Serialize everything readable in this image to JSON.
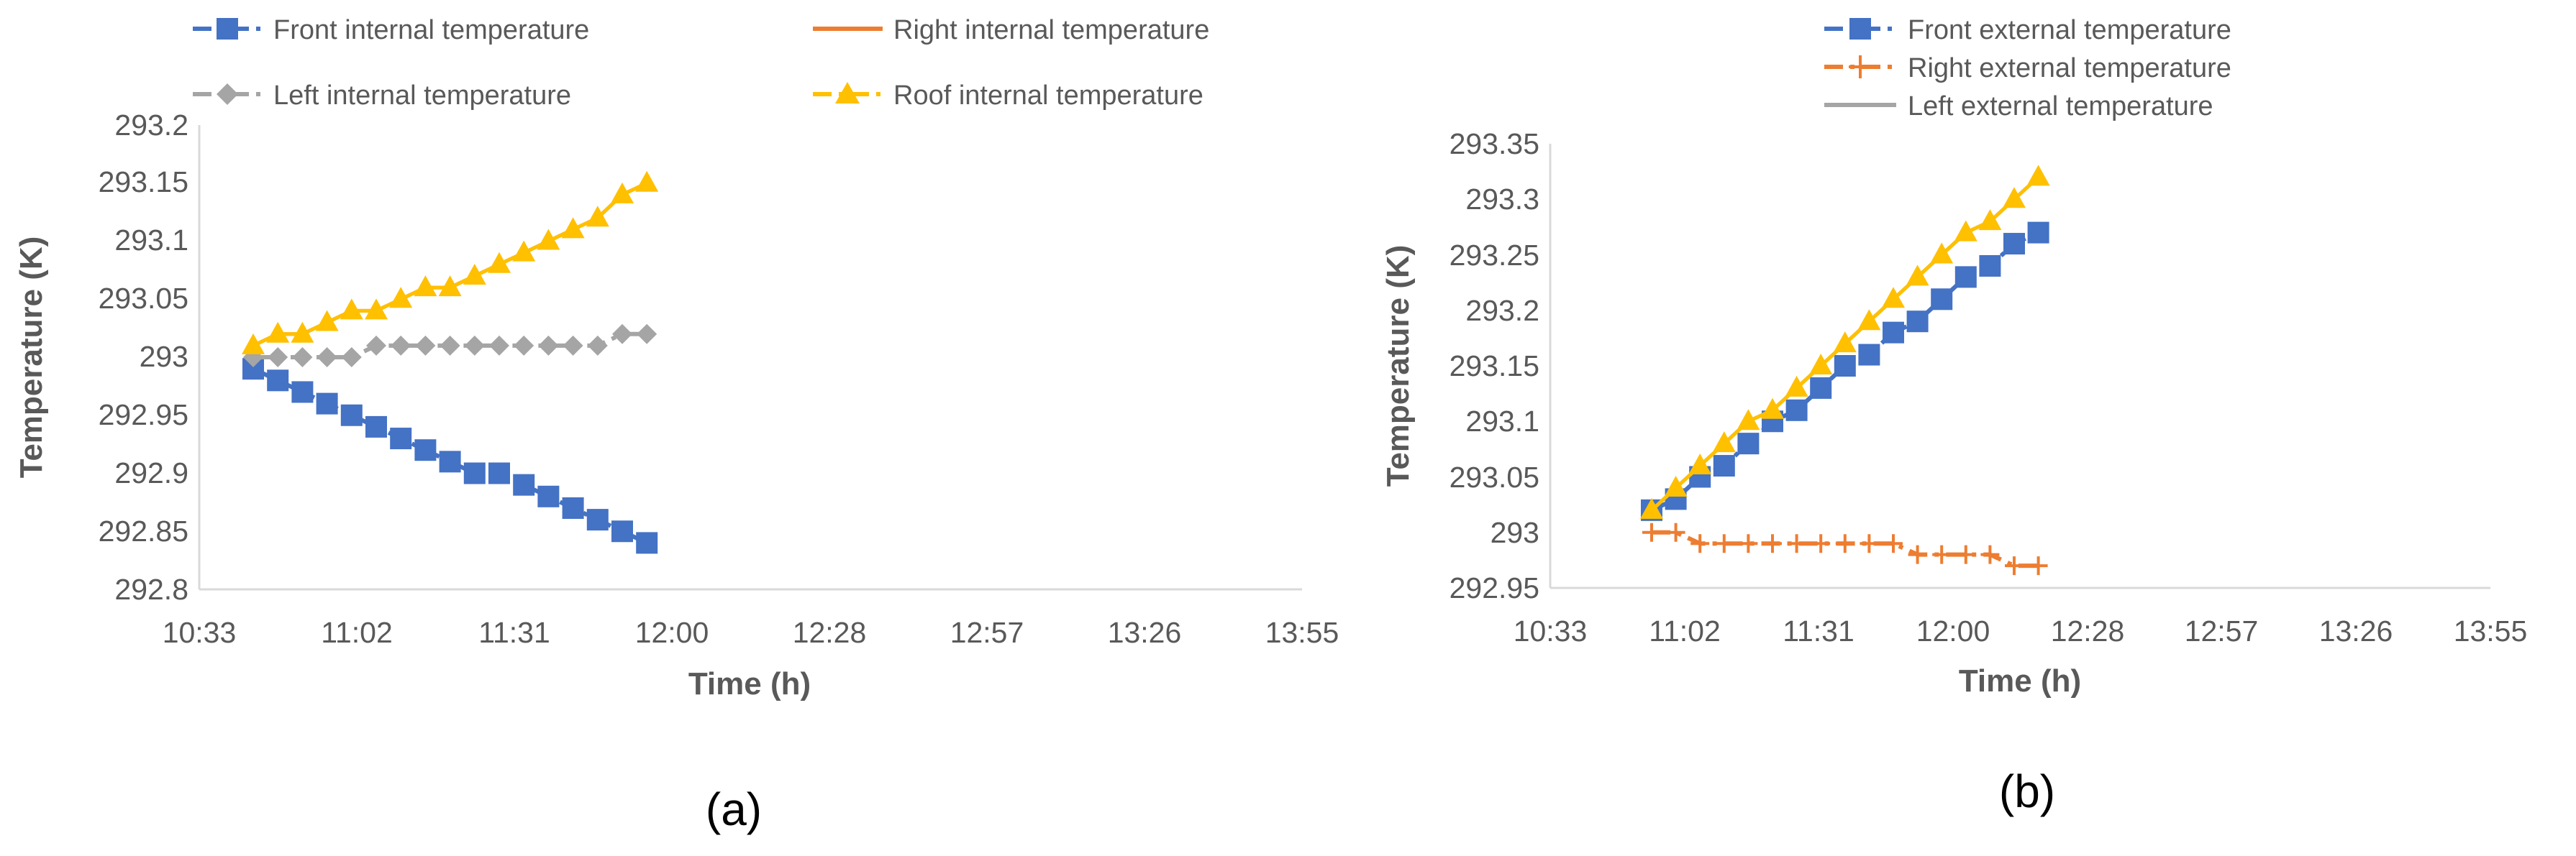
{
  "chart_data": [
    {
      "id": "a",
      "type": "line",
      "panel_label": "(a)",
      "xlabel": "Time (h)",
      "ylabel": "Temperature (K)",
      "x_ticks": [
        "10:33",
        "11:02",
        "11:31",
        "12:00",
        "12:28",
        "12:57",
        "13:26",
        "13:55"
      ],
      "ylim": [
        292.8,
        293.2
      ],
      "y_ticks": [
        "292.8",
        "292.85",
        "292.9",
        "292.95",
        "293",
        "293.05",
        "293.1",
        "293.15",
        "293.2"
      ],
      "series": [
        {
          "name": "Front internal temperature",
          "color": "#4472C4",
          "marker": "square",
          "line": "dashdot",
          "values": [
            292.99,
            292.98,
            292.97,
            292.96,
            292.95,
            292.94,
            292.93,
            292.92,
            292.91,
            292.9,
            292.9,
            292.89,
            292.88,
            292.87,
            292.86,
            292.85,
            292.84
          ]
        },
        {
          "name": "Right internal temperature",
          "color": "#ED7D31",
          "marker": "none",
          "line": "solid",
          "values": [
            293.01,
            293.02,
            293.02,
            293.03,
            293.04,
            293.04,
            293.05,
            293.06,
            293.06,
            293.07,
            293.08,
            293.09,
            293.1,
            293.11,
            293.12,
            293.14,
            293.15
          ]
        },
        {
          "name": "Left internal temperature",
          "color": "#A5A5A5",
          "marker": "diamond",
          "line": "dashdot",
          "values": [
            293.0,
            293.0,
            293.0,
            293.0,
            293.0,
            293.01,
            293.01,
            293.01,
            293.01,
            293.01,
            293.01,
            293.01,
            293.01,
            293.01,
            293.01,
            293.02,
            293.02
          ]
        },
        {
          "name": "Roof internal temperature",
          "color": "#FFC000",
          "marker": "triangle",
          "line": "solid",
          "values": [
            293.01,
            293.02,
            293.02,
            293.03,
            293.04,
            293.04,
            293.05,
            293.06,
            293.06,
            293.07,
            293.08,
            293.09,
            293.1,
            293.11,
            293.12,
            293.14,
            293.15
          ]
        }
      ]
    },
    {
      "id": "b",
      "type": "line",
      "panel_label": "(b)",
      "xlabel": "Time (h)",
      "ylabel": "Temperature (K)",
      "x_ticks": [
        "10:33",
        "11:02",
        "11:31",
        "12:00",
        "12:28",
        "12:57",
        "13:26",
        "13:55"
      ],
      "ylim": [
        292.95,
        293.35
      ],
      "y_ticks": [
        "292.95",
        "293",
        "293.05",
        "293.1",
        "293.15",
        "293.2",
        "293.25",
        "293.3",
        "293.35"
      ],
      "series": [
        {
          "name": "Front external temperature",
          "color": "#4472C4",
          "marker": "square",
          "line": "dashdot",
          "values": [
            293.02,
            293.03,
            293.05,
            293.06,
            293.08,
            293.1,
            293.11,
            293.13,
            293.15,
            293.16,
            293.18,
            293.19,
            293.21,
            293.23,
            293.24,
            293.26,
            293.27
          ]
        },
        {
          "name": "Right external temperature",
          "color": "#ED7D31",
          "marker": "plus",
          "line": "dashdot",
          "values": [
            293.0,
            293.0,
            292.99,
            292.99,
            292.99,
            292.99,
            292.99,
            292.99,
            292.99,
            292.99,
            292.99,
            292.98,
            292.98,
            292.98,
            292.98,
            292.97,
            292.97
          ]
        },
        {
          "name": "Left external temperature",
          "color": "#A5A5A5",
          "marker": "none",
          "line": "solid",
          "values": [
            293.02,
            293.04,
            293.06,
            293.08,
            293.1,
            293.11,
            293.13,
            293.15,
            293.17,
            293.19,
            293.21,
            293.23,
            293.25,
            293.27,
            293.28,
            293.3,
            293.32
          ]
        },
        {
          "name": "",
          "color": "#FFC000",
          "marker": "triangle",
          "line": "solid",
          "in_legend": false,
          "values": [
            293.02,
            293.04,
            293.06,
            293.08,
            293.1,
            293.11,
            293.13,
            293.15,
            293.17,
            293.19,
            293.21,
            293.23,
            293.25,
            293.27,
            293.28,
            293.3,
            293.32
          ]
        }
      ]
    }
  ]
}
